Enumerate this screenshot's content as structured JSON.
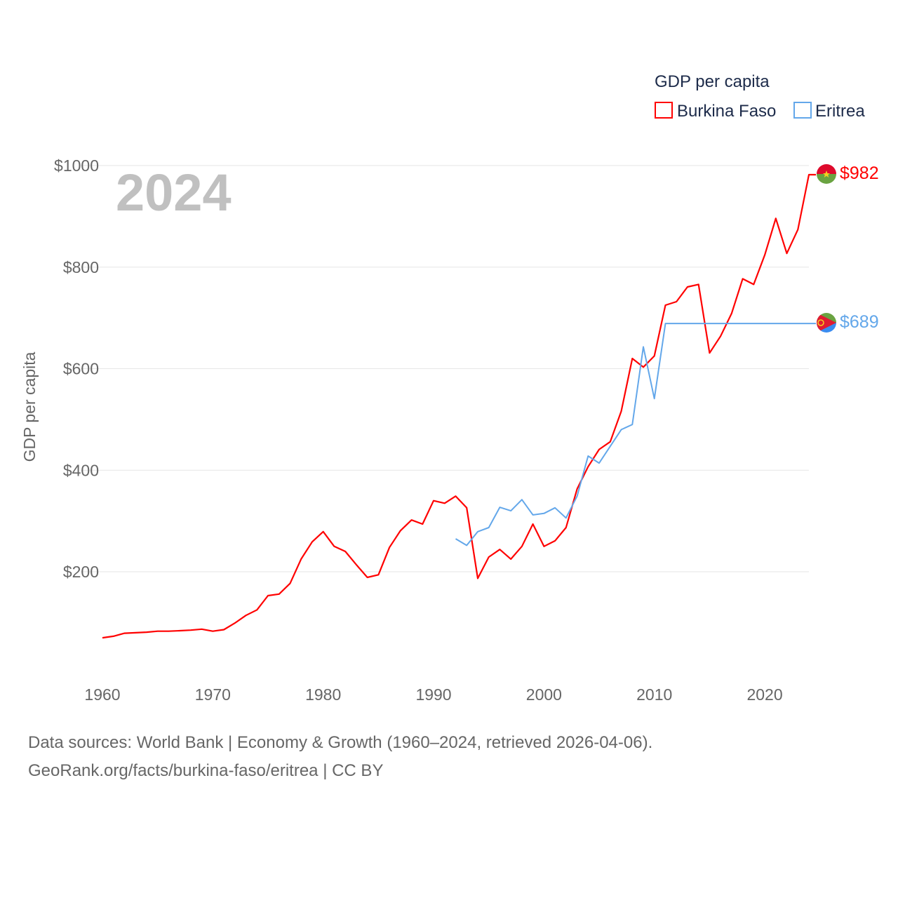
{
  "chart_data": {
    "type": "line",
    "title": "GDP per capita",
    "ylabel": "GDP per capita",
    "xlabel": "",
    "year_label": "2024",
    "xlim": [
      1960,
      2024
    ],
    "ylim": [
      0,
      1000
    ],
    "x_ticks": [
      1960,
      1970,
      1980,
      1990,
      2000,
      2010,
      2020
    ],
    "y_ticks": [
      200,
      400,
      600,
      800,
      1000
    ],
    "y_tick_labels": [
      "$200",
      "$400",
      "$600",
      "$800",
      "$1000"
    ],
    "grid": true,
    "legend_placement": "top-right",
    "series": [
      {
        "name": "Burkina Faso",
        "color": "#ff0000",
        "end_label": "$982",
        "start_year": 1960,
        "values": [
          70,
          73,
          79,
          80,
          81,
          83,
          83,
          84,
          85,
          87,
          83,
          86,
          99,
          114,
          125,
          153,
          156,
          177,
          225,
          259,
          279,
          250,
          240,
          214,
          189,
          194,
          248,
          281,
          302,
          294,
          340,
          335,
          349,
          326,
          187,
          229,
          244,
          225,
          250,
          294,
          250,
          261,
          287,
          363,
          407,
          441,
          456,
          516,
          620,
          603,
          625,
          725,
          732,
          761,
          766,
          631,
          664,
          709,
          777,
          766,
          824,
          896,
          827,
          874,
          982
        ]
      },
      {
        "name": "Eritrea",
        "color": "#63a7ea",
        "end_label": "$689",
        "start_year": 1992,
        "values": [
          265,
          252,
          279,
          287,
          327,
          320,
          342,
          312,
          315,
          326,
          306,
          349,
          428,
          414,
          447,
          480,
          490,
          643,
          541,
          689,
          689,
          689,
          689,
          689,
          689,
          689,
          689,
          689,
          689,
          689,
          689,
          689,
          689
        ]
      }
    ]
  },
  "footer": {
    "line1": "Data sources: World Bank | Economy & Growth (1960–2024, retrieved 2026-04-06).",
    "line2": "GeoRank.org/facts/burkina-faso/eritrea | CC BY"
  }
}
